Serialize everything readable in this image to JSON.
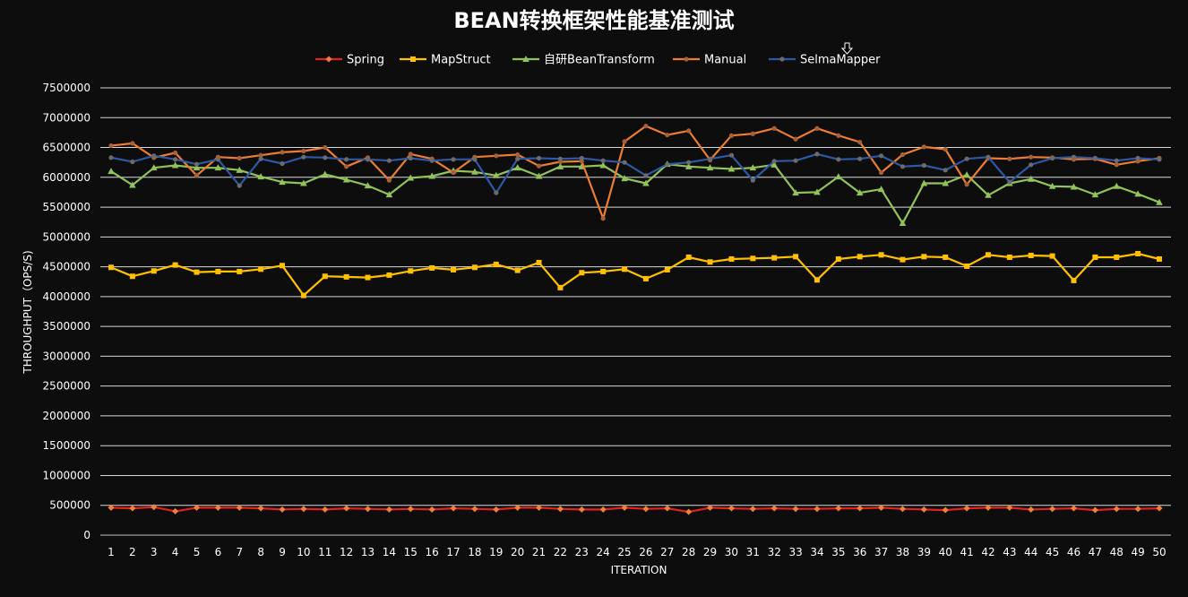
{
  "chart_data": {
    "type": "line",
    "title": "BEAN转换框架性能基准测试",
    "xlabel": "ITERATION",
    "ylabel": "THROUGHPUT（OPS/S)",
    "ylim": [
      0,
      7500000
    ],
    "yticks": [
      0,
      500000,
      1000000,
      1500000,
      2000000,
      2500000,
      3000000,
      3500000,
      4000000,
      4500000,
      5000000,
      5500000,
      6000000,
      6500000,
      7000000,
      7500000
    ],
    "ytick_labels": [
      "0",
      "500000",
      "1000000",
      "1500000",
      "2000000",
      "2500000",
      "3000000",
      "3500000",
      "4000000",
      "4500000",
      "5000000",
      "5500000",
      "6000000",
      "6500000",
      "7000000",
      "7500000"
    ],
    "x": [
      1,
      2,
      3,
      4,
      5,
      6,
      7,
      8,
      9,
      10,
      11,
      12,
      13,
      14,
      15,
      16,
      17,
      18,
      19,
      20,
      21,
      22,
      23,
      24,
      25,
      26,
      27,
      28,
      29,
      30,
      31,
      32,
      33,
      34,
      35,
      36,
      37,
      38,
      39,
      40,
      41,
      42,
      43,
      44,
      45,
      46,
      47,
      48,
      49,
      50
    ],
    "x_labels": [
      "1",
      "2",
      "3",
      "4",
      "5",
      "6",
      "7",
      "8",
      "9",
      "10",
      "11",
      "12",
      "13",
      "14",
      "15",
      "16",
      "17",
      "18",
      "19",
      "20",
      "21",
      "22",
      "23",
      "24",
      "25",
      "26",
      "27",
      "28",
      "29",
      "30",
      "31",
      "32",
      "33",
      "34",
      "35",
      "36",
      "37",
      "38",
      "39",
      "40",
      "41",
      "42",
      "43",
      "44",
      "45",
      "46",
      "47",
      "48",
      "49",
      "50"
    ],
    "grid": true,
    "legend_position": "top",
    "series": [
      {
        "name": "Spring",
        "color": "#e0241b",
        "marker": "diamond",
        "marker_color": "#f0803c",
        "values": [
          460000,
          450000,
          470000,
          400000,
          460000,
          460000,
          460000,
          450000,
          430000,
          440000,
          430000,
          450000,
          440000,
          430000,
          440000,
          430000,
          450000,
          440000,
          430000,
          460000,
          460000,
          440000,
          430000,
          430000,
          460000,
          440000,
          450000,
          390000,
          460000,
          450000,
          440000,
          450000,
          440000,
          440000,
          450000,
          450000,
          460000,
          440000,
          430000,
          420000,
          450000,
          460000,
          460000,
          430000,
          440000,
          450000,
          420000,
          440000,
          440000,
          450000
        ]
      },
      {
        "name": "MapStruct",
        "color": "#ffc000",
        "marker": "square",
        "marker_color": "#ffc000",
        "values": [
          4490000,
          4340000,
          4430000,
          4530000,
          4410000,
          4420000,
          4420000,
          4460000,
          4520000,
          4020000,
          4340000,
          4330000,
          4320000,
          4360000,
          4430000,
          4480000,
          4450000,
          4490000,
          4540000,
          4440000,
          4570000,
          4150000,
          4400000,
          4420000,
          4460000,
          4300000,
          4450000,
          4660000,
          4580000,
          4630000,
          4640000,
          4650000,
          4670000,
          4280000,
          4630000,
          4670000,
          4700000,
          4620000,
          4670000,
          4660000,
          4510000,
          4700000,
          4660000,
          4690000,
          4680000,
          4270000,
          4660000,
          4660000,
          4720000,
          4630000
        ]
      },
      {
        "name": "自研BeanTransform",
        "color": "#92c35a",
        "marker": "triangle",
        "marker_color": "#92c35a",
        "values": [
          6100000,
          5870000,
          6160000,
          6200000,
          6160000,
          6160000,
          6120000,
          6010000,
          5920000,
          5900000,
          6050000,
          5960000,
          5860000,
          5710000,
          5990000,
          6020000,
          6110000,
          6090000,
          6030000,
          6160000,
          6020000,
          6180000,
          6180000,
          6200000,
          5980000,
          5900000,
          6220000,
          6180000,
          6160000,
          6140000,
          6160000,
          6210000,
          5740000,
          5750000,
          6010000,
          5740000,
          5800000,
          5230000,
          5900000,
          5900000,
          6040000,
          5700000,
          5900000,
          5970000,
          5850000,
          5840000,
          5710000,
          5850000,
          5720000,
          5580000
        ]
      },
      {
        "name": "Manual",
        "color": "#ed7d31",
        "marker": "circle",
        "marker_color": "#a6603a",
        "values": [
          6530000,
          6570000,
          6330000,
          6410000,
          6030000,
          6340000,
          6320000,
          6370000,
          6420000,
          6440000,
          6500000,
          6180000,
          6330000,
          5950000,
          6390000,
          6310000,
          6080000,
          6340000,
          6360000,
          6380000,
          6190000,
          6260000,
          6270000,
          5310000,
          6600000,
          6860000,
          6710000,
          6780000,
          6290000,
          6700000,
          6730000,
          6820000,
          6640000,
          6820000,
          6700000,
          6590000,
          6080000,
          6380000,
          6510000,
          6470000,
          5880000,
          6320000,
          6310000,
          6340000,
          6330000,
          6300000,
          6310000,
          6210000,
          6270000,
          6320000
        ]
      },
      {
        "name": "SelmaMapper",
        "color": "#2e58a6",
        "marker": "circle",
        "marker_color": "#6b6b6b",
        "values": [
          6330000,
          6260000,
          6360000,
          6300000,
          6220000,
          6300000,
          5860000,
          6310000,
          6230000,
          6340000,
          6330000,
          6300000,
          6300000,
          6280000,
          6320000,
          6280000,
          6300000,
          6300000,
          5740000,
          6310000,
          6320000,
          6310000,
          6320000,
          6280000,
          6250000,
          6030000,
          6220000,
          6250000,
          6310000,
          6370000,
          5950000,
          6270000,
          6280000,
          6390000,
          6300000,
          6310000,
          6360000,
          6180000,
          6200000,
          6120000,
          6310000,
          6340000,
          5920000,
          6210000,
          6320000,
          6340000,
          6320000,
          6280000,
          6320000,
          6300000
        ]
      }
    ]
  }
}
